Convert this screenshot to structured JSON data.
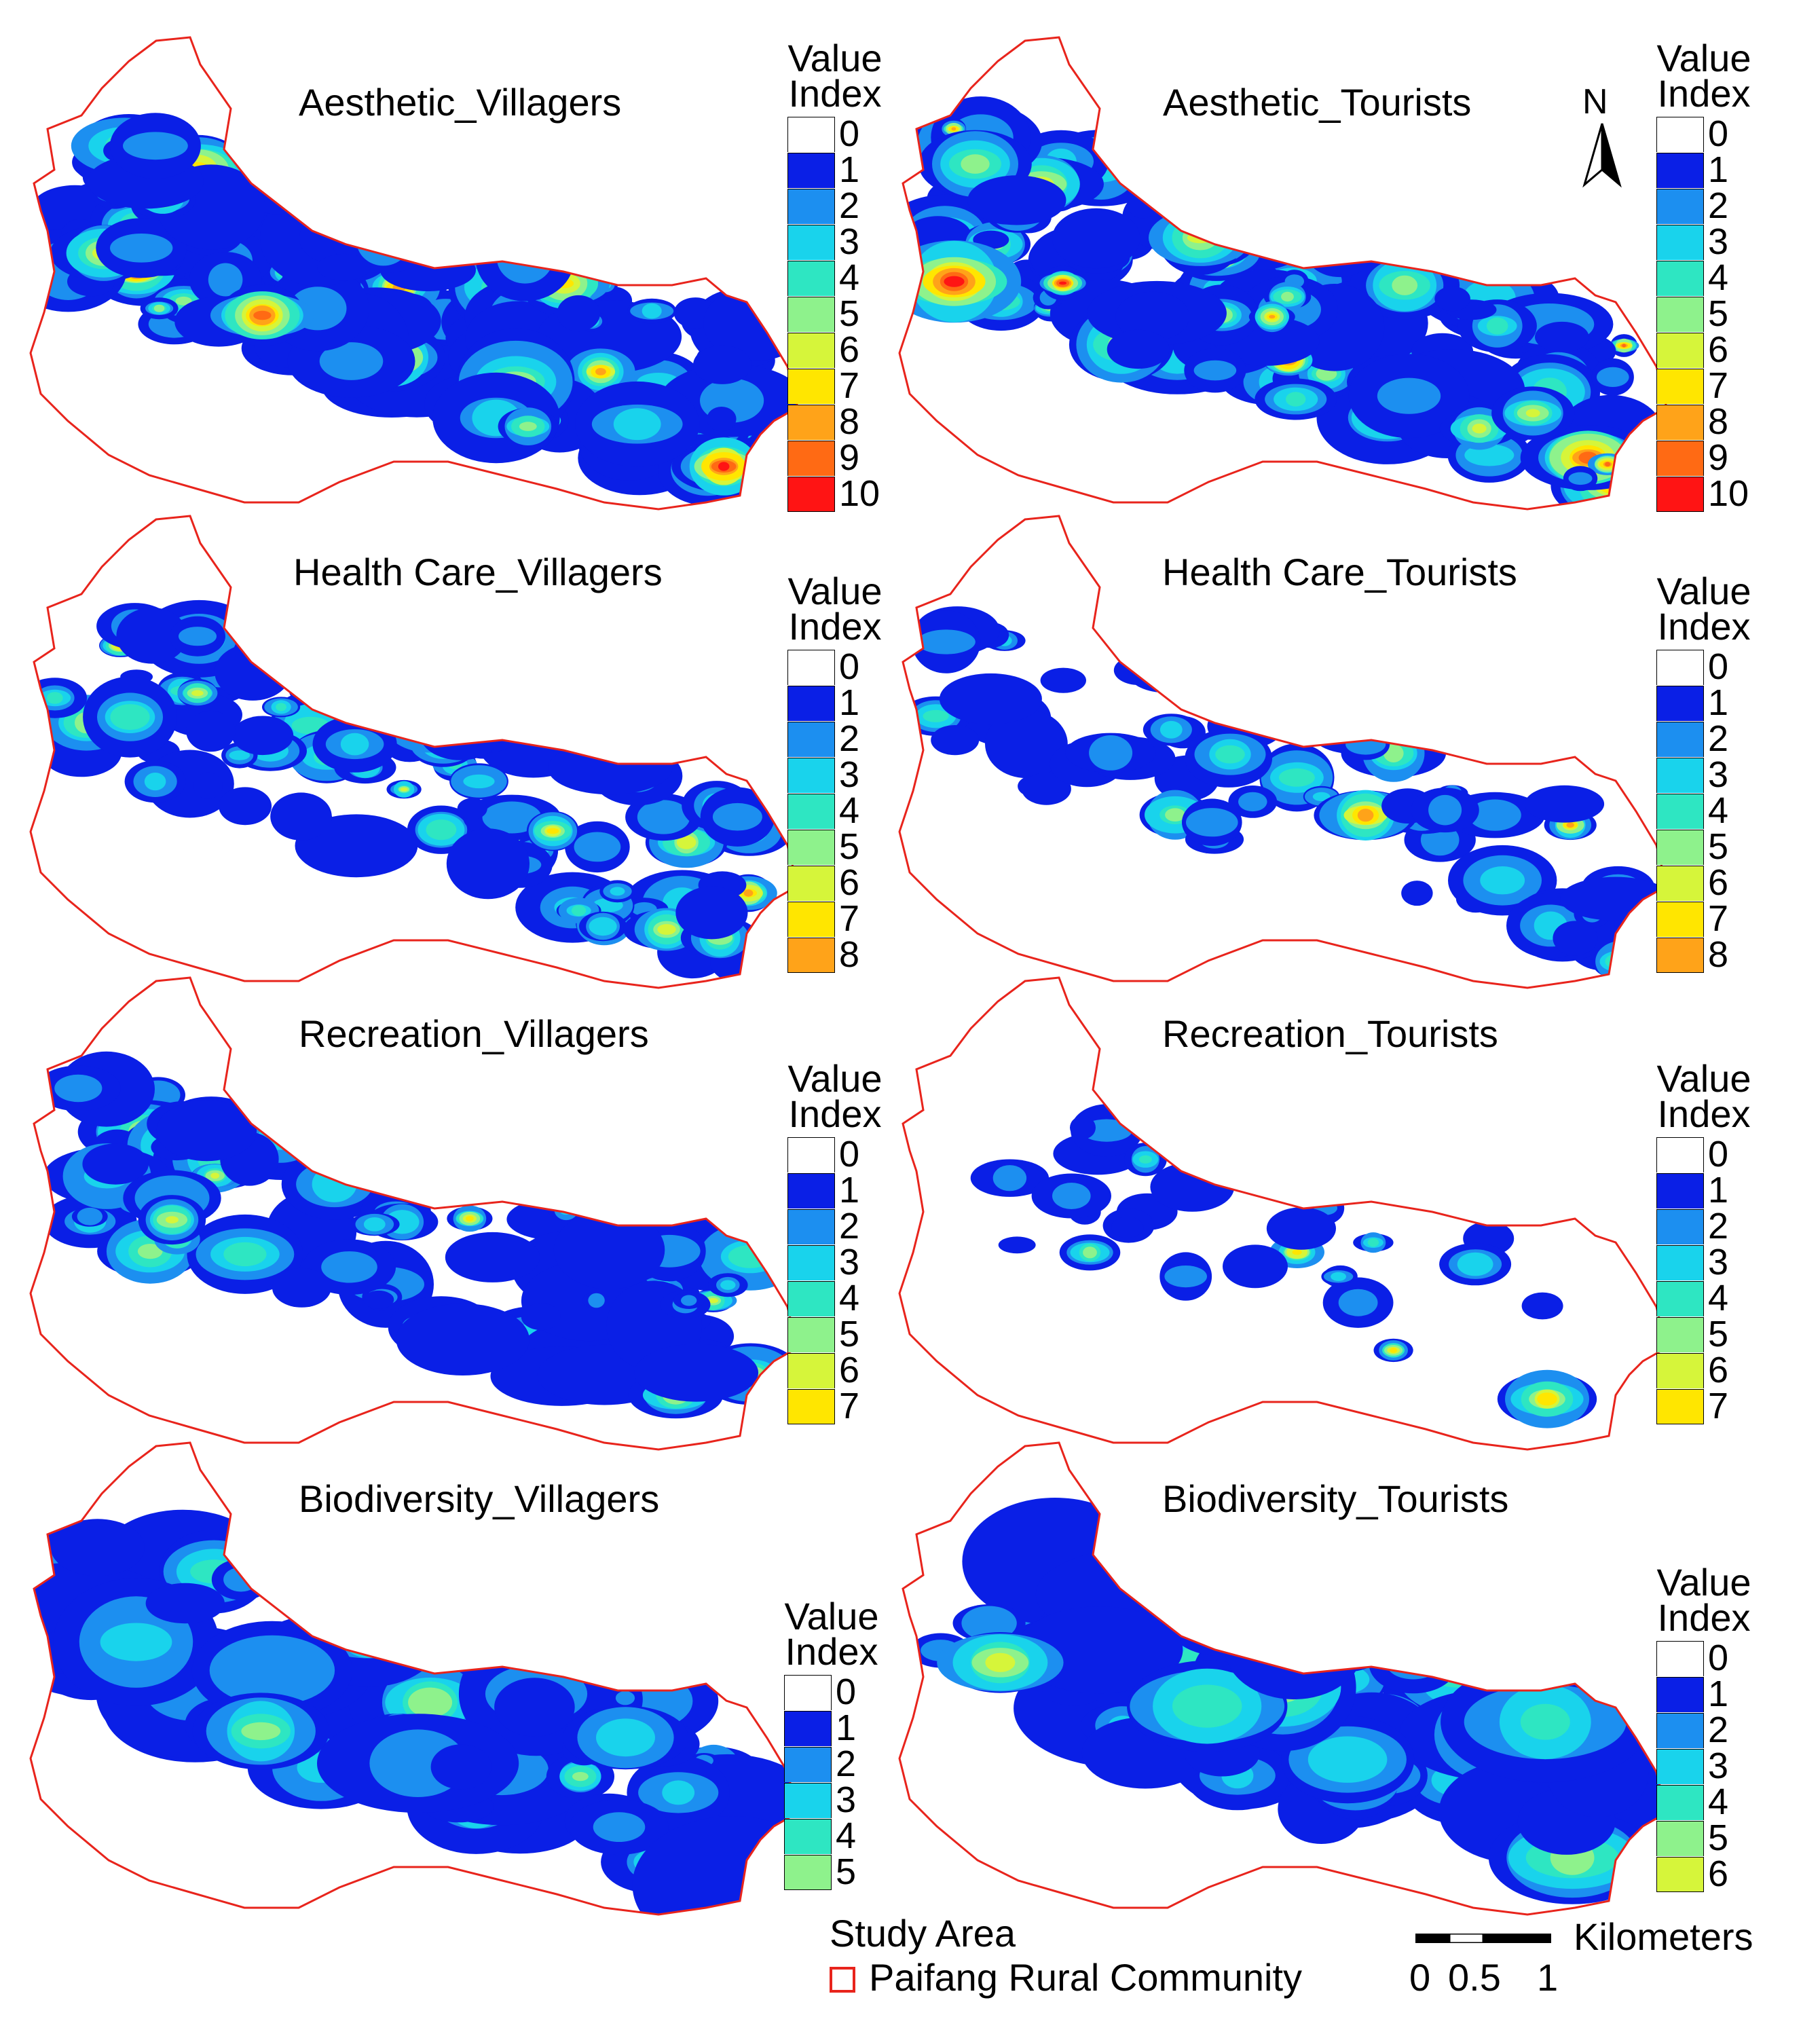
{
  "panels": [
    {
      "title": "Aesthetic_Villagers",
      "legend_title": [
        "Value",
        "Index"
      ],
      "max_index": 10
    },
    {
      "title": "Aesthetic_Tourists",
      "legend_title": [
        "Value",
        "Index"
      ],
      "max_index": 10
    },
    {
      "title": "Health Care_Villagers",
      "legend_title": [
        "Value",
        "Index"
      ],
      "max_index": 8
    },
    {
      "title": "Health Care_Tourists",
      "legend_title": [
        "Value",
        "Index"
      ],
      "max_index": 8
    },
    {
      "title": "Recreation_Villagers",
      "legend_title": [
        "Value",
        "Index"
      ],
      "max_index": 7
    },
    {
      "title": "Recreation_Tourists",
      "legend_title": [
        "Value",
        "Index"
      ],
      "max_index": 7
    },
    {
      "title": "Biodiversity_Villagers",
      "legend_title": [
        "Value",
        "Index"
      ],
      "max_index": 5
    },
    {
      "title": "Biodiversity_Tourists",
      "legend_title": [
        "Value",
        "Index"
      ],
      "max_index": 6
    }
  ],
  "value_colors": [
    "#ffffff",
    "#0a1fe6",
    "#1c8ff0",
    "#19d3ec",
    "#2ee6c2",
    "#8ef28c",
    "#d6f53a",
    "#ffe600",
    "#ffa319",
    "#ff6a14",
    "#ff1414"
  ],
  "boundary_color": "#e8241c",
  "north_arrow": {
    "label": "N",
    "icon": "north-arrow-icon"
  },
  "study_area": {
    "title": "Study Area",
    "label": "Paifang Rural Community"
  },
  "scale_bar": {
    "unit": "Kilometers",
    "ticks": [
      "0",
      "0.5",
      "1"
    ]
  }
}
